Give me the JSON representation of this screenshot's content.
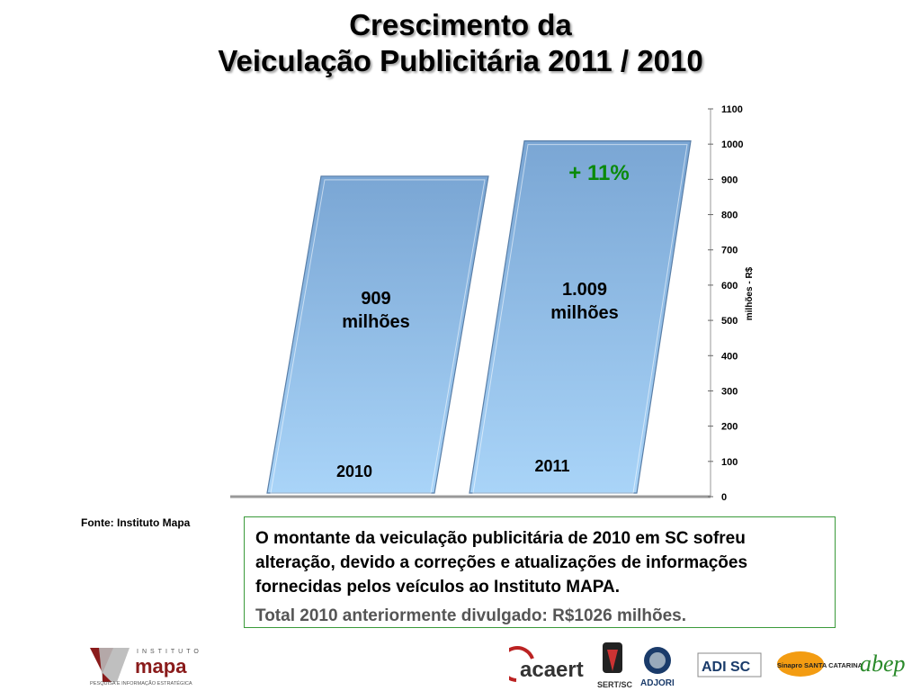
{
  "title": {
    "line1": "Crescimento da",
    "line2": "Veiculação Publicitária 2011 / 2010"
  },
  "chart_data": {
    "type": "bar",
    "categories": [
      "2010",
      "2011"
    ],
    "values": [
      909,
      1009
    ],
    "bar_labels": [
      {
        "line1": "909",
        "line2": "milhões"
      },
      {
        "line1": "1.009",
        "line2": "milhões"
      }
    ],
    "annotation": "+ 11%",
    "ylabel": "milhões - R$",
    "ylim": [
      0,
      1100
    ],
    "yticks": [
      0,
      100,
      200,
      300,
      400,
      500,
      600,
      700,
      800,
      900,
      1000,
      1100
    ],
    "grid": false,
    "y_axis_side": "right",
    "colors": {
      "bar_top": "#7aa6d4",
      "bar_bottom": "#a9d4f8",
      "annotation": "#0a8a0a"
    }
  },
  "source": "Fonte: Instituto Mapa",
  "note": {
    "main": "O montante da veiculação publicitária de 2010 em SC sofreu alteração, devido a correções e atualizações de informações fornecidas pelos veículos ao Instituto MAPA.",
    "sub": "Total 2010 anteriormente divulgado: R$1026 milhões."
  },
  "logos": {
    "mapa": {
      "top": "INSTITUTO",
      "name": "mapa",
      "tagline": "PESQUISA E INFORMAÇÃO ESTRATÉGICA"
    },
    "partners": [
      "acaert",
      "SERT/SC",
      "ADJORI",
      "ADI SC",
      "Sinapro SANTA CATARINA",
      "abep"
    ]
  }
}
